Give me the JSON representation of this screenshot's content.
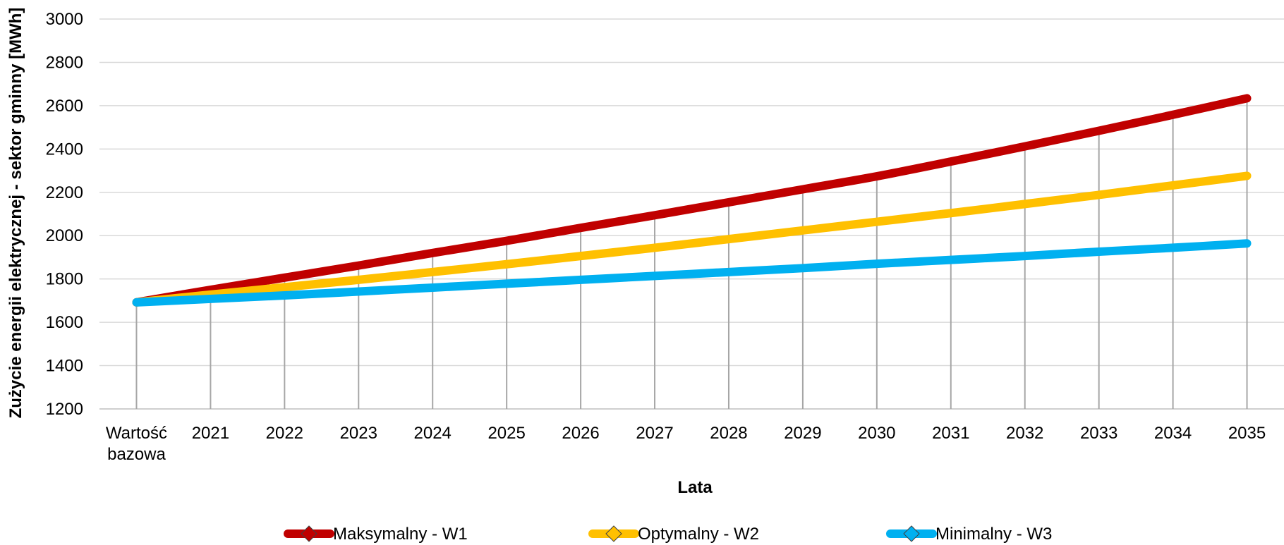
{
  "chart_data": {
    "type": "line",
    "title": "",
    "xlabel": "Lata",
    "ylabel": "Zużycie energii elektrycznej - sektor gminny [MWh]",
    "categories": [
      "Wartość\nbazowa",
      "2021",
      "2022",
      "2023",
      "2024",
      "2025",
      "2026",
      "2027",
      "2028",
      "2029",
      "2030",
      "2031",
      "2032",
      "2033",
      "2034",
      "2035"
    ],
    "ylim": [
      1200,
      3000
    ],
    "yticks": [
      1200,
      1400,
      1600,
      1800,
      2000,
      2200,
      2400,
      2600,
      2800,
      3000
    ],
    "grid": true,
    "drop_lines": true,
    "legend_position": "bottom",
    "series": [
      {
        "name": "Maksymalny - W1",
        "color": "#C00000",
        "values": [
          1692,
          1750,
          1806,
          1862,
          1920,
          1976,
          2036,
          2094,
          2154,
          2214,
          2274,
          2342,
          2412,
          2484,
          2558,
          2634
        ]
      },
      {
        "name": "Optymalny - W2",
        "color": "#FFC000",
        "values": [
          1692,
          1728,
          1762,
          1796,
          1832,
          1868,
          1906,
          1944,
          1984,
          2024,
          2064,
          2104,
          2146,
          2188,
          2232,
          2276
        ]
      },
      {
        "name": "Minimalny - W3",
        "color": "#00B0F0",
        "values": [
          1692,
          1708,
          1724,
          1742,
          1760,
          1778,
          1796,
          1814,
          1832,
          1850,
          1870,
          1888,
          1906,
          1926,
          1944,
          1964
        ]
      }
    ]
  }
}
